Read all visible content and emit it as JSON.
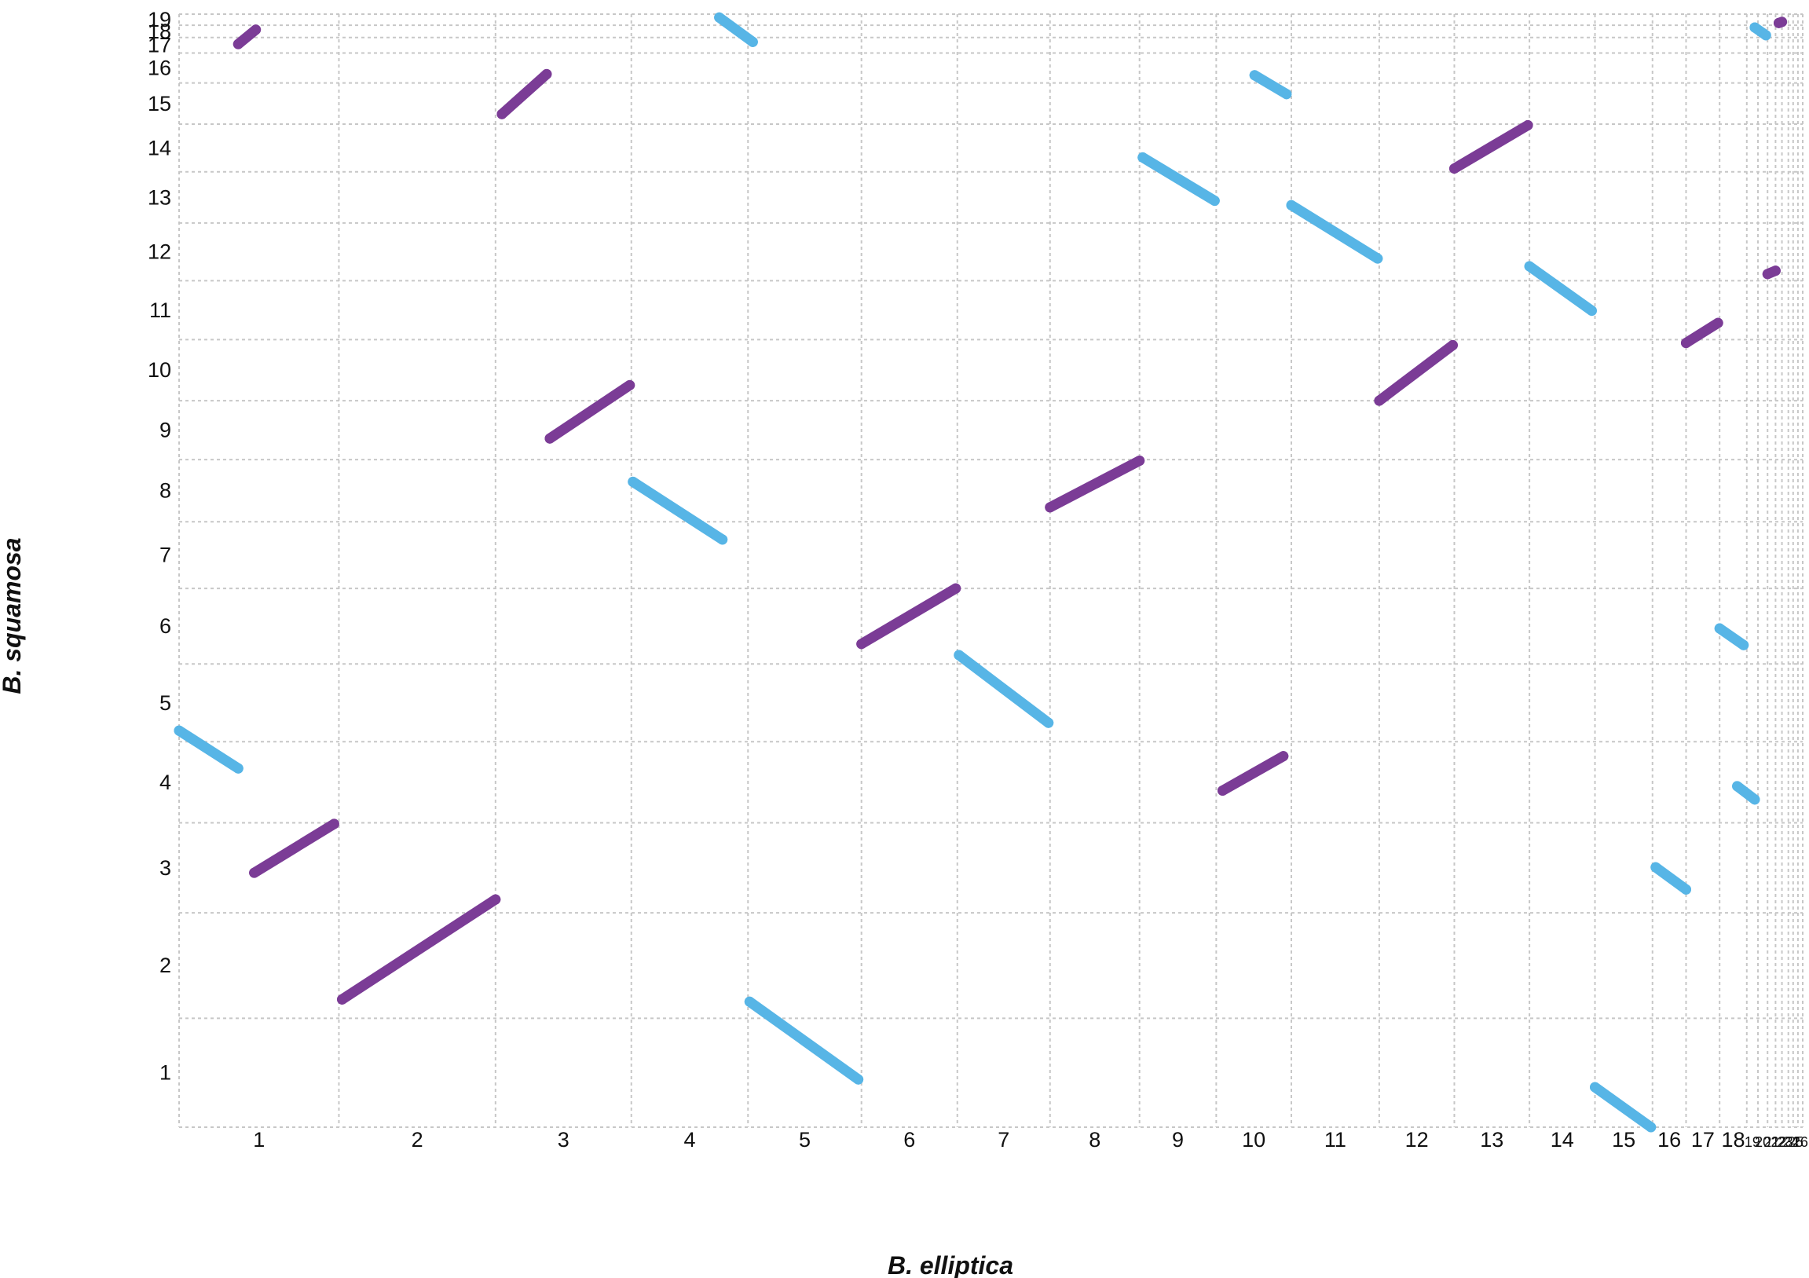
{
  "chart_data": {
    "type": "scatter",
    "title": "",
    "xlabel": "B. elliptica",
    "ylabel": "B. squamosa",
    "grid": true,
    "colors": {
      "forward": "#7b3c96",
      "reverse": "#57b5e6",
      "grid": "#c7c7c7"
    },
    "x_chromosomes": [
      {
        "label": "1",
        "start": 0,
        "end": 1.0
      },
      {
        "label": "2",
        "start": 1.0,
        "end": 1.98
      },
      {
        "label": "3",
        "start": 1.98,
        "end": 2.83
      },
      {
        "label": "4",
        "start": 2.83,
        "end": 3.56
      },
      {
        "label": "5",
        "start": 3.56,
        "end": 4.27
      },
      {
        "label": "6",
        "start": 4.27,
        "end": 4.87
      },
      {
        "label": "7",
        "start": 4.87,
        "end": 5.45
      },
      {
        "label": "8",
        "start": 5.45,
        "end": 6.01
      },
      {
        "label": "9",
        "start": 6.01,
        "end": 6.49
      },
      {
        "label": "10",
        "start": 6.49,
        "end": 6.96
      },
      {
        "label": "11",
        "start": 6.96,
        "end": 7.51
      },
      {
        "label": "12",
        "start": 7.51,
        "end": 7.98
      },
      {
        "label": "13",
        "start": 7.98,
        "end": 8.45
      },
      {
        "label": "14",
        "start": 8.45,
        "end": 8.86
      },
      {
        "label": "15",
        "start": 8.86,
        "end": 9.22
      },
      {
        "label": "16",
        "start": 9.22,
        "end": 9.43
      },
      {
        "label": "17",
        "start": 9.43,
        "end": 9.64
      },
      {
        "label": "18",
        "start": 9.64,
        "end": 9.81
      },
      {
        "label": "19",
        "start": 9.81,
        "end": 9.88
      },
      {
        "label": "20",
        "start": 9.88,
        "end": 9.94
      },
      {
        "label": "21",
        "start": 9.94,
        "end": 9.99
      },
      {
        "label": "22",
        "start": 9.99,
        "end": 10.03
      },
      {
        "label": "23",
        "start": 10.03,
        "end": 10.07
      },
      {
        "label": "24",
        "start": 10.07,
        "end": 10.1
      },
      {
        "label": "25",
        "start": 10.1,
        "end": 10.13
      },
      {
        "label": "26",
        "start": 10.13,
        "end": 10.16
      }
    ],
    "x_tick_text": [
      "1",
      "2",
      "3",
      "4",
      "5",
      "6",
      "7",
      "8",
      "9",
      "10",
      "11",
      "12",
      "13",
      "14",
      "15",
      "16",
      "17",
      "18",
      "19",
      "20",
      "21",
      "22",
      "23",
      "24",
      "25",
      "26"
    ],
    "y_chromosomes": [
      {
        "label": "1",
        "start": 0,
        "end": 0.98
      },
      {
        "label": "2",
        "start": 0.98,
        "end": 1.93
      },
      {
        "label": "3",
        "start": 1.93,
        "end": 2.74
      },
      {
        "label": "4",
        "start": 2.74,
        "end": 3.47
      },
      {
        "label": "5",
        "start": 3.47,
        "end": 4.17
      },
      {
        "label": "6",
        "start": 4.17,
        "end": 4.85
      },
      {
        "label": "7",
        "start": 4.85,
        "end": 5.45
      },
      {
        "label": "8",
        "start": 5.45,
        "end": 6.01
      },
      {
        "label": "9",
        "start": 6.01,
        "end": 6.54
      },
      {
        "label": "10",
        "start": 6.54,
        "end": 7.09
      },
      {
        "label": "11",
        "start": 7.09,
        "end": 7.62
      },
      {
        "label": "12",
        "start": 7.62,
        "end": 8.14
      },
      {
        "label": "13",
        "start": 8.14,
        "end": 8.6
      },
      {
        "label": "14",
        "start": 8.6,
        "end": 9.03
      },
      {
        "label": "15",
        "start": 9.03,
        "end": 9.4
      },
      {
        "label": "16",
        "start": 9.4,
        "end": 9.67
      },
      {
        "label": "17",
        "start": 9.67,
        "end": 9.81
      },
      {
        "label": "18",
        "start": 9.81,
        "end": 9.92
      },
      {
        "label": "19",
        "start": 9.92,
        "end": 10.02
      }
    ],
    "series": [
      {
        "orientation": "forward",
        "x": [
          0.37,
          0.48
        ],
        "y": [
          9.75,
          9.88
        ]
      },
      {
        "orientation": "forward",
        "x": [
          0.47,
          0.97
        ],
        "y": [
          2.29,
          2.73
        ]
      },
      {
        "orientation": "forward",
        "x": [
          1.02,
          1.98
        ],
        "y": [
          1.15,
          2.05
        ]
      },
      {
        "orientation": "forward",
        "x": [
          2.02,
          2.3
        ],
        "y": [
          9.12,
          9.48
        ]
      },
      {
        "orientation": "forward",
        "x": [
          2.32,
          2.82
        ],
        "y": [
          6.2,
          6.68
        ]
      },
      {
        "orientation": "reverse",
        "x": [
          2.84,
          3.4
        ],
        "y": [
          5.81,
          5.29
        ]
      },
      {
        "orientation": "reverse",
        "x": [
          3.38,
          3.59
        ],
        "y": [
          9.99,
          9.77
        ]
      },
      {
        "orientation": "reverse",
        "x": [
          0.0,
          0.37
        ],
        "y": [
          3.57,
          3.23
        ]
      },
      {
        "orientation": "reverse",
        "x": [
          3.57,
          4.25
        ],
        "y": [
          1.13,
          0.43
        ]
      },
      {
        "orientation": "forward",
        "x": [
          4.27,
          4.86
        ],
        "y": [
          4.35,
          4.85
        ]
      },
      {
        "orientation": "reverse",
        "x": [
          4.88,
          5.44
        ],
        "y": [
          4.25,
          3.64
        ]
      },
      {
        "orientation": "forward",
        "x": [
          5.45,
          6.01
        ],
        "y": [
          5.58,
          6.0
        ]
      },
      {
        "orientation": "reverse",
        "x": [
          6.03,
          6.48
        ],
        "y": [
          8.73,
          8.34
        ]
      },
      {
        "orientation": "forward",
        "x": [
          6.53,
          6.91
        ],
        "y": [
          3.03,
          3.34
        ]
      },
      {
        "orientation": "reverse",
        "x": [
          6.73,
          6.93
        ],
        "y": [
          9.47,
          9.3
        ]
      },
      {
        "orientation": "reverse",
        "x": [
          6.96,
          7.5
        ],
        "y": [
          8.3,
          7.82
        ]
      },
      {
        "orientation": "forward",
        "x": [
          7.51,
          7.97
        ],
        "y": [
          6.54,
          7.04
        ]
      },
      {
        "orientation": "forward",
        "x": [
          7.98,
          8.44
        ],
        "y": [
          8.63,
          9.02
        ]
      },
      {
        "orientation": "reverse",
        "x": [
          8.45,
          8.84
        ],
        "y": [
          7.75,
          7.35
        ]
      },
      {
        "orientation": "reverse",
        "x": [
          8.86,
          9.21
        ],
        "y": [
          0.36,
          0.0
        ]
      },
      {
        "orientation": "reverse",
        "x": [
          9.24,
          9.43
        ],
        "y": [
          2.34,
          2.14
        ]
      },
      {
        "orientation": "forward",
        "x": [
          9.43,
          9.63
        ],
        "y": [
          7.06,
          7.24
        ]
      },
      {
        "orientation": "reverse",
        "x": [
          9.64,
          9.79
        ],
        "y": [
          4.49,
          4.34
        ]
      },
      {
        "orientation": "reverse",
        "x": [
          9.75,
          9.86
        ],
        "y": [
          3.07,
          2.95
        ]
      },
      {
        "orientation": "reverse",
        "x": [
          9.86,
          9.93
        ],
        "y": [
          9.9,
          9.83
        ]
      },
      {
        "orientation": "forward",
        "x": [
          9.94,
          9.99
        ],
        "y": [
          7.68,
          7.71
        ]
      },
      {
        "orientation": "forward",
        "x": [
          10.01,
          10.03
        ],
        "y": [
          9.94,
          9.95
        ]
      }
    ]
  }
}
